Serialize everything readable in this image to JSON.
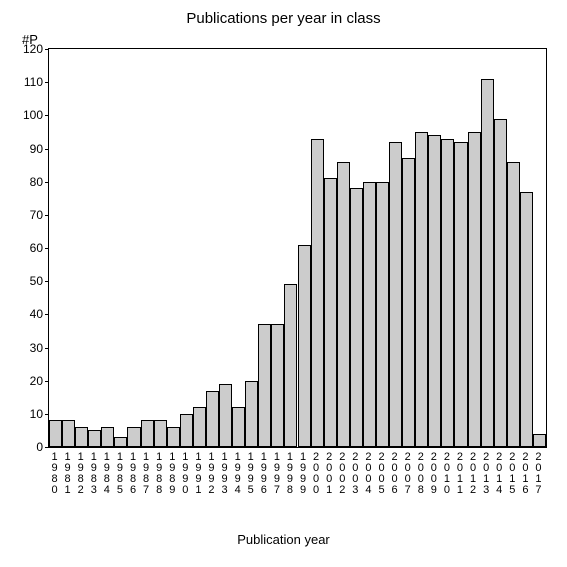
{
  "chart": {
    "type": "bar",
    "title": "Publications per year in class",
    "ylabel": "#P",
    "xlabel": "Publication year",
    "background_color": "#ffffff",
    "bar_color": "#cccccc",
    "bar_border_color": "#000000",
    "axis_color": "#000000",
    "text_color": "#000000",
    "title_fontsize": 15,
    "label_fontsize": 13,
    "tick_fontsize": 12,
    "xlabel_fontsize": 11,
    "ylim": [
      0,
      120
    ],
    "ytick_step": 10,
    "yticks": [
      0,
      10,
      20,
      30,
      40,
      50,
      60,
      70,
      80,
      90,
      100,
      110,
      120
    ],
    "bar_width": 1.0,
    "categories": [
      "1980",
      "1981",
      "1982",
      "1983",
      "1984",
      "1985",
      "1986",
      "1987",
      "1988",
      "1989",
      "1990",
      "1991",
      "1992",
      "1993",
      "1994",
      "1995",
      "1996",
      "1997",
      "1998",
      "1999",
      "2000",
      "2001",
      "2002",
      "2003",
      "2004",
      "2005",
      "2006",
      "2007",
      "2008",
      "2009",
      "2010",
      "2011",
      "2012",
      "2013",
      "2014",
      "2015",
      "2016",
      "2017"
    ],
    "values": [
      8,
      8,
      6,
      5,
      6,
      3,
      6,
      8,
      8,
      6,
      10,
      12,
      17,
      19,
      12,
      20,
      37,
      37,
      49,
      61,
      93,
      81,
      86,
      78,
      80,
      80,
      92,
      87,
      95,
      94,
      93,
      92,
      95,
      111,
      99,
      86,
      77,
      4
    ]
  }
}
